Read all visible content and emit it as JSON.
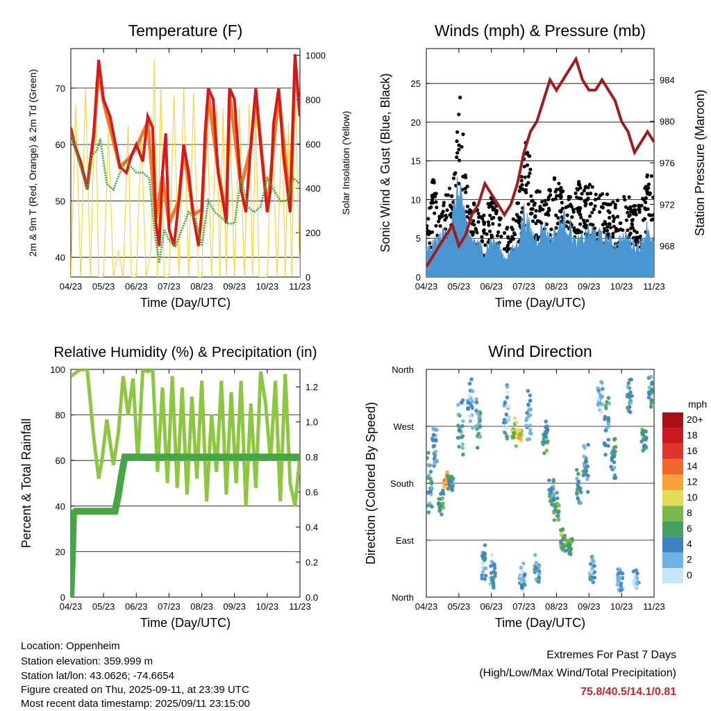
{
  "chart_data": [
    {
      "type": "line",
      "title": "Temperature (F)",
      "xlabel": "Time (Day/UTC)",
      "ylabel": "2m & 9m T (Red, Orange) & 2m Td (Green)",
      "y2label": "Solar Insolation (Yellow)",
      "x_ticks": [
        "04/23",
        "05/23",
        "06/23",
        "07/23",
        "08/23",
        "09/23",
        "10/23",
        "11/23"
      ],
      "ylim": [
        36.5,
        77
      ],
      "y_ticks": [
        40,
        50,
        60,
        70
      ],
      "y2lim": [
        0,
        1030
      ],
      "y2_ticks": [
        0,
        200,
        400,
        600,
        800,
        1000
      ],
      "grid": "horizontal",
      "colors": {
        "t2m": "#d7191c",
        "t9m": "#f07c27",
        "td2m": "#43a843",
        "solar": "#f7d53e"
      },
      "series": [
        {
          "key": "t2m",
          "x": [
            0,
            0.1,
            0.3,
            0.5,
            0.7,
            0.85,
            1.0,
            1.2,
            1.5,
            1.7,
            1.85,
            2.0,
            2.2,
            2.35,
            2.5,
            2.6,
            2.7,
            2.8,
            2.9,
            3.0,
            3.15,
            3.3,
            3.45,
            3.6,
            3.75,
            3.9,
            4.0,
            4.1,
            4.2,
            4.35,
            4.5,
            4.65,
            4.75,
            4.85,
            5.0,
            5.2,
            5.35,
            5.5,
            5.65,
            5.8,
            6.0,
            6.1,
            6.2,
            6.35,
            6.5,
            6.7,
            6.85,
            7.0
          ],
          "y": [
            63,
            60,
            57,
            52,
            62,
            75,
            68,
            65,
            56,
            55,
            58,
            60,
            57,
            65,
            63,
            46,
            42,
            55,
            62,
            45,
            42,
            50,
            60,
            55,
            47,
            42,
            48,
            62,
            70,
            68,
            55,
            50,
            46,
            70,
            68,
            52,
            48,
            60,
            70,
            60,
            48,
            52,
            64,
            70,
            58,
            48,
            76,
            65
          ]
        },
        {
          "key": "t9m",
          "x": [
            0,
            0.3,
            0.5,
            0.7,
            0.85,
            1.0,
            1.5,
            1.85,
            2.0,
            2.35,
            2.6,
            2.8,
            3.0,
            3.3,
            3.45,
            3.75,
            4.0,
            4.2,
            4.5,
            4.75,
            4.85,
            5.2,
            5.5,
            5.65,
            6.0,
            6.35,
            6.7,
            6.85,
            7.0
          ],
          "y": [
            62.5,
            56.5,
            52.5,
            61.5,
            73.5,
            67.5,
            56,
            58,
            59.5,
            64,
            47,
            54.5,
            46,
            50,
            59,
            47.5,
            48.5,
            69,
            55.5,
            47,
            69,
            52.5,
            59.5,
            69,
            48.5,
            69,
            49,
            74.5,
            65
          ]
        },
        {
          "key": "td2m",
          "x": [
            0,
            0.3,
            0.5,
            0.65,
            0.8,
            0.9,
            1.1,
            1.3,
            1.5,
            1.7,
            1.85,
            2.0,
            2.2,
            2.4,
            2.55,
            2.7,
            2.85,
            3.0,
            3.2,
            3.4,
            3.6,
            3.8,
            4.0,
            4.2,
            4.4,
            4.6,
            4.8,
            5.0,
            5.2,
            5.4,
            5.6,
            5.8,
            6.0,
            6.2,
            6.4,
            6.6,
            6.8,
            7.0
          ],
          "y": [
            62,
            56,
            52,
            58,
            59,
            61,
            53,
            52,
            55,
            57,
            56,
            55,
            55,
            54,
            45,
            39,
            45,
            43,
            42,
            45,
            48,
            47,
            42,
            50,
            48,
            47,
            46,
            46,
            54,
            49,
            48,
            49,
            54,
            52,
            50,
            50,
            54,
            53
          ]
        },
        {
          "key": "solar",
          "axis": "y2",
          "x": [
            0,
            0.15,
            0.3,
            0.45,
            0.6,
            0.75,
            0.85,
            1.0,
            1.15,
            1.3,
            1.45,
            1.6,
            1.75,
            1.85,
            2.0,
            2.15,
            2.3,
            2.45,
            2.55,
            2.65,
            2.75,
            2.85,
            3.0,
            3.15,
            3.3,
            3.45,
            3.6,
            3.75,
            3.9,
            4.0,
            4.15,
            4.3,
            4.45,
            4.55,
            4.65,
            4.75,
            4.85,
            5.0,
            5.15,
            5.3,
            5.45,
            5.55,
            5.65,
            5.75,
            5.85,
            6.0,
            6.15,
            6.3,
            6.45,
            6.55,
            6.65,
            6.75,
            6.85,
            7.0
          ],
          "y": [
            0,
            780,
            0,
            850,
            0,
            880,
            0,
            0,
            650,
            0,
            120,
            0,
            680,
            0,
            0,
            650,
            0,
            120,
            980,
            0,
            860,
            0,
            0,
            820,
            0,
            850,
            0,
            830,
            0,
            0,
            800,
            0,
            780,
            0,
            760,
            0,
            760,
            0,
            760,
            0,
            780,
            0,
            740,
            0,
            0,
            0,
            700,
            0,
            720,
            0,
            700,
            0,
            880,
            0
          ]
        }
      ],
      "series_names_shown": false
    },
    {
      "type": "scatter",
      "title": "Winds (mph) & Pressure (mb)",
      "xlabel": "Time (Day/UTC)",
      "ylabel": "Sonic Wind & Gust (Blue, Black)",
      "y2label": "Station Pressure (Maroon)",
      "x_ticks": [
        "04/23",
        "05/23",
        "06/23",
        "07/23",
        "08/23",
        "09/23",
        "10/23",
        "11/23"
      ],
      "ylim": [
        0,
        29.5
      ],
      "y_ticks": [
        0,
        5,
        10,
        15,
        20,
        25
      ],
      "y2lim": [
        965,
        987
      ],
      "y2_ticks": [
        968,
        972,
        976,
        980,
        984
      ],
      "grid": "horizontal",
      "colors": {
        "wind": "#4a96d2",
        "gust": "#000000",
        "pressure": "#a01c1c"
      },
      "wind_envelope": {
        "x": [
          0,
          0.2,
          0.4,
          0.6,
          0.8,
          0.95,
          1.05,
          1.2,
          1.4,
          1.6,
          1.8,
          2.0,
          2.2,
          2.4,
          2.6,
          2.8,
          3.0,
          3.2,
          3.4,
          3.6,
          3.8,
          4.0,
          4.2,
          4.4,
          4.6,
          4.8,
          5.0,
          5.2,
          5.4,
          5.6,
          5.8,
          6.0,
          6.2,
          6.4,
          6.6,
          6.8,
          7.0
        ],
        "y": [
          4,
          5,
          6,
          7,
          9,
          13,
          14,
          8,
          6,
          5,
          4,
          6,
          5,
          3,
          4,
          5,
          10,
          7,
          6,
          8,
          6,
          7,
          9,
          8,
          5,
          6,
          7,
          7,
          6,
          6,
          5,
          6,
          6,
          5,
          5,
          8,
          5
        ]
      },
      "gust_envelope": {
        "x": [
          0,
          0.2,
          0.4,
          0.6,
          0.8,
          0.95,
          1.05,
          1.2,
          1.4,
          1.6,
          1.8,
          2.0,
          2.2,
          2.4,
          2.6,
          2.8,
          2.95,
          3.1,
          3.3,
          3.5,
          3.7,
          3.9,
          4.1,
          4.3,
          4.5,
          4.7,
          4.9,
          5.1,
          5.3,
          5.5,
          5.7,
          5.9,
          6.1,
          6.3,
          6.5,
          6.7,
          6.9,
          7.0
        ],
        "y": [
          9,
          14,
          8,
          11,
          12,
          20,
          27,
          14,
          10,
          9,
          8,
          11,
          9,
          6,
          7,
          10,
          14,
          21,
          12,
          11,
          10,
          14,
          12,
          11,
          10,
          13,
          12,
          12,
          11,
          11,
          10,
          10,
          11,
          10,
          9,
          13,
          14,
          11
        ]
      },
      "series": [
        {
          "key": "pressure",
          "axis": "y2",
          "x": [
            0,
            0.2,
            0.4,
            0.6,
            0.8,
            1.0,
            1.2,
            1.4,
            1.6,
            1.8,
            2.0,
            2.2,
            2.4,
            2.6,
            2.8,
            3.0,
            3.2,
            3.4,
            3.6,
            3.8,
            4.0,
            4.2,
            4.4,
            4.6,
            4.8,
            5.0,
            5.2,
            5.4,
            5.6,
            5.8,
            6.0,
            6.2,
            6.4,
            6.6,
            6.8,
            7.0
          ],
          "y": [
            966,
            967,
            968,
            969,
            970,
            968,
            969,
            971,
            972,
            974,
            973,
            972,
            971,
            972,
            974,
            977,
            979,
            980,
            982,
            984,
            983,
            984,
            985,
            986,
            984,
            983,
            983,
            984,
            983,
            982,
            980,
            979,
            977,
            978,
            979,
            978
          ]
        }
      ],
      "series_names_shown": false
    },
    {
      "type": "line",
      "title": "Relative Humidity (%) & Precipitation (in)",
      "xlabel": "Time (Day/UTC)",
      "ylabel": "Percent & Total Rainfall",
      "x_ticks": [
        "04/23",
        "05/23",
        "06/23",
        "07/23",
        "08/23",
        "09/23",
        "10/23",
        "11/23"
      ],
      "ylim": [
        0,
        100
      ],
      "y_ticks": [
        0,
        20,
        40,
        60,
        80,
        100
      ],
      "y2lim": [
        0,
        1.3
      ],
      "y2_ticks": [
        "0.0",
        "0.2",
        "0.4",
        "0.6",
        "0.8",
        "1.0",
        "1.2"
      ],
      "grid": "horizontal",
      "colors": {
        "rh": "#8dc63f",
        "precip": "#43a843"
      },
      "series": [
        {
          "key": "rh",
          "x": [
            0,
            0.1,
            0.3,
            0.5,
            0.7,
            0.85,
            0.95,
            1.1,
            1.3,
            1.45,
            1.6,
            1.75,
            1.9,
            2.05,
            2.2,
            2.35,
            2.5,
            2.65,
            2.8,
            2.95,
            3.1,
            3.25,
            3.4,
            3.55,
            3.7,
            3.85,
            4.0,
            4.15,
            4.3,
            4.45,
            4.6,
            4.75,
            4.9,
            5.05,
            5.2,
            5.35,
            5.5,
            5.65,
            5.8,
            5.95,
            6.1,
            6.25,
            6.4,
            6.55,
            6.7,
            6.85,
            7.0
          ],
          "y": [
            97,
            98,
            100,
            100,
            70,
            52,
            60,
            78,
            58,
            72,
            97,
            80,
            96,
            60,
            100,
            99,
            100,
            55,
            92,
            50,
            97,
            48,
            92,
            45,
            88,
            52,
            95,
            42,
            80,
            55,
            95,
            45,
            90,
            50,
            95,
            40,
            85,
            48,
            99,
            85,
            60,
            95,
            42,
            98,
            50,
            40,
            62
          ]
        },
        {
          "key": "precip",
          "axis": "y2",
          "x": [
            0,
            0.05,
            0.08,
            0.15,
            0.4,
            0.9,
            1.35,
            1.45,
            1.55,
            1.65,
            1.8,
            2.5,
            3.5,
            5.0,
            7.0
          ],
          "y": [
            0,
            0.26,
            0.48,
            0.49,
            0.49,
            0.49,
            0.49,
            0.58,
            0.7,
            0.8,
            0.8,
            0.8,
            0.8,
            0.8,
            0.8
          ]
        }
      ],
      "series_names_shown": false
    },
    {
      "type": "scatter",
      "title": "Wind Direction",
      "xlabel": "Time (Day/UTC)",
      "ylabel": "Direction (Colored By Speed)",
      "x_ticks": [
        "04/23",
        "05/23",
        "06/23",
        "07/23",
        "08/23",
        "09/23",
        "10/23",
        "11/23"
      ],
      "y_ticks": [
        "North",
        "East",
        "South",
        "West",
        "North"
      ],
      "ylim": [
        0,
        360
      ],
      "grid": "horizontal",
      "colorbar": {
        "title": "mph",
        "labels": [
          "20+",
          "18",
          "16",
          "14",
          "12",
          "10",
          "8",
          "6",
          "4",
          "2",
          "0"
        ],
        "colors": [
          "#a50f15",
          "#cb181d",
          "#e0362a",
          "#f1662d",
          "#f9a13a",
          "#e4dc54",
          "#76b84a",
          "#42a162",
          "#3d7fc1",
          "#6eb2e4",
          "#c6e7f9"
        ]
      },
      "clusters": [
        {
          "x": 0.1,
          "y_center": 180,
          "y_spread": 60,
          "speed": 4
        },
        {
          "x": 0.25,
          "y_center": 235,
          "y_spread": 40,
          "speed": 4
        },
        {
          "x": 0.45,
          "y_center": 150,
          "y_spread": 25,
          "speed": 6
        },
        {
          "x": 0.6,
          "y_center": 185,
          "y_spread": 15,
          "speed": 12
        },
        {
          "x": 0.75,
          "y_center": 180,
          "y_spread": 15,
          "speed": 5
        },
        {
          "x": 1.05,
          "y_center": 265,
          "y_spread": 55,
          "speed": 4
        },
        {
          "x": 1.35,
          "y_center": 310,
          "y_spread": 50,
          "speed": 2
        },
        {
          "x": 1.6,
          "y_center": 270,
          "y_spread": 45,
          "speed": 4
        },
        {
          "x": 1.75,
          "y_center": 50,
          "y_spread": 40,
          "speed": 3
        },
        {
          "x": 2.05,
          "y_center": 35,
          "y_spread": 40,
          "speed": 3
        },
        {
          "x": 2.45,
          "y_center": 280,
          "y_spread": 60,
          "speed": 3
        },
        {
          "x": 2.7,
          "y_center": 260,
          "y_spread": 30,
          "speed": 8
        },
        {
          "x": 2.85,
          "y_center": 255,
          "y_spread": 15,
          "speed": 10
        },
        {
          "x": 2.95,
          "y_center": 30,
          "y_spread": 30,
          "speed": 3
        },
        {
          "x": 3.15,
          "y_center": 285,
          "y_spread": 60,
          "speed": 3
        },
        {
          "x": 3.4,
          "y_center": 45,
          "y_spread": 25,
          "speed": 4
        },
        {
          "x": 3.65,
          "y_center": 255,
          "y_spread": 35,
          "speed": 5
        },
        {
          "x": 3.85,
          "y_center": 165,
          "y_spread": 30,
          "speed": 5
        },
        {
          "x": 4.0,
          "y_center": 140,
          "y_spread": 30,
          "speed": 6
        },
        {
          "x": 4.2,
          "y_center": 90,
          "y_spread": 20,
          "speed": 7
        },
        {
          "x": 4.4,
          "y_center": 80,
          "y_spread": 15,
          "speed": 6
        },
        {
          "x": 4.7,
          "y_center": 165,
          "y_spread": 40,
          "speed": 4
        },
        {
          "x": 4.9,
          "y_center": 205,
          "y_spread": 45,
          "speed": 4
        },
        {
          "x": 5.1,
          "y_center": 40,
          "y_spread": 30,
          "speed": 3
        },
        {
          "x": 5.35,
          "y_center": 320,
          "y_spread": 40,
          "speed": 3
        },
        {
          "x": 5.55,
          "y_center": 270,
          "y_spread": 55,
          "speed": 4
        },
        {
          "x": 5.75,
          "y_center": 220,
          "y_spread": 40,
          "speed": 5
        },
        {
          "x": 5.95,
          "y_center": 30,
          "y_spread": 25,
          "speed": 3
        },
        {
          "x": 6.25,
          "y_center": 320,
          "y_spread": 40,
          "speed": 3
        },
        {
          "x": 6.45,
          "y_center": 30,
          "y_spread": 20,
          "speed": 2
        },
        {
          "x": 6.7,
          "y_center": 250,
          "y_spread": 35,
          "speed": 5
        },
        {
          "x": 6.9,
          "y_center": 330,
          "y_spread": 35,
          "speed": 4
        }
      ]
    }
  ],
  "footer": {
    "location": "Location: Oppenheim",
    "elevation": "Station elevation: 359.999 m",
    "latlon": "Station lat/lon: 43.0626; -74.6654",
    "created": "Figure created on Thu, 2025-09-11, at 23:39 UTC",
    "recent": "Most recent data timestamp: 2025/09/11 23:15:00"
  },
  "extremes": {
    "heading": "Extremes For Past 7 Days",
    "subheading": "(High/Low/Max Wind/Total Precipitation)",
    "values": "75.8/40.5/14.1/0.81"
  }
}
